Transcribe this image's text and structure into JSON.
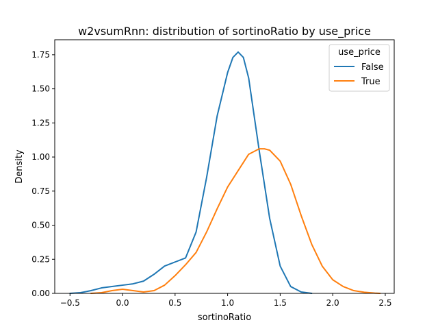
{
  "chart_data": {
    "type": "line",
    "title": "w2vsumRnn: distribution of sortinoRatio by use_price",
    "xlabel": "sortinoRatio",
    "ylabel": "Density",
    "xlim": [
      -0.645,
      2.585
    ],
    "ylim": [
      0,
      1.86
    ],
    "xticks": [
      -0.5,
      0.0,
      0.5,
      1.0,
      1.5,
      2.0,
      2.5
    ],
    "xtick_labels": [
      "−0.5",
      "0.0",
      "0.5",
      "1.0",
      "1.5",
      "2.0",
      "2.5"
    ],
    "yticks": [
      0,
      0.25,
      0.5,
      0.75,
      1.0,
      1.25,
      1.5,
      1.75
    ],
    "ytick_labels": [
      "0.00",
      "0.25",
      "0.50",
      "0.75",
      "1.00",
      "1.25",
      "1.50",
      "1.75"
    ],
    "grid": false,
    "legend": {
      "title": "use_price",
      "placement": "top-right"
    },
    "series": [
      {
        "name": "False",
        "color": "#1f77b4",
        "x": [
          -0.5,
          -0.4,
          -0.3,
          -0.2,
          -0.1,
          0.0,
          0.1,
          0.2,
          0.3,
          0.4,
          0.5,
          0.6,
          0.7,
          0.8,
          0.9,
          1.0,
          1.05,
          1.1,
          1.15,
          1.2,
          1.3,
          1.4,
          1.5,
          1.6,
          1.7,
          1.8
        ],
        "y": [
          0.0,
          0.005,
          0.02,
          0.04,
          0.05,
          0.06,
          0.07,
          0.09,
          0.14,
          0.2,
          0.23,
          0.26,
          0.45,
          0.85,
          1.3,
          1.62,
          1.73,
          1.77,
          1.73,
          1.58,
          1.05,
          0.55,
          0.2,
          0.05,
          0.01,
          0.0
        ]
      },
      {
        "name": "True",
        "color": "#ff7f0e",
        "x": [
          -0.3,
          -0.2,
          -0.1,
          0.0,
          0.1,
          0.2,
          0.3,
          0.4,
          0.5,
          0.6,
          0.7,
          0.8,
          0.9,
          1.0,
          1.1,
          1.2,
          1.3,
          1.35,
          1.4,
          1.5,
          1.6,
          1.7,
          1.8,
          1.9,
          2.0,
          2.1,
          2.2,
          2.3,
          2.4,
          2.45
        ],
        "y": [
          0.0,
          0.005,
          0.02,
          0.03,
          0.02,
          0.01,
          0.02,
          0.06,
          0.13,
          0.21,
          0.3,
          0.45,
          0.62,
          0.78,
          0.9,
          1.02,
          1.06,
          1.06,
          1.05,
          0.97,
          0.8,
          0.57,
          0.36,
          0.2,
          0.1,
          0.05,
          0.02,
          0.008,
          0.002,
          0.0
        ]
      }
    ]
  }
}
